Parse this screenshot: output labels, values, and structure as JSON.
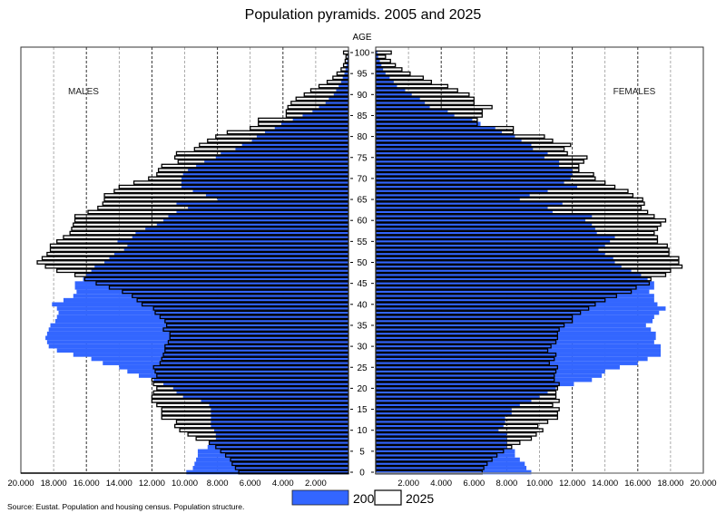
{
  "chart_data": {
    "type": "bar",
    "title": "Population pyramids. 2005 and 2025",
    "yaxis_label": "AGE",
    "left_label": "MALES",
    "right_label": "FEMALES",
    "source": "Source: Eustat. Population and housing census. Population structure.",
    "orientation": "horizontal-pyramid",
    "xlim": [
      0,
      20000
    ],
    "x_tick_values": [
      2000,
      4000,
      6000,
      8000,
      10000,
      12000,
      14000,
      16000,
      18000,
      20000
    ],
    "x_tick_labels": [
      "2.000",
      "4.000",
      "6.000",
      "8.000",
      "10.000",
      "12.000",
      "14.000",
      "16.000",
      "18.000",
      "20.000"
    ],
    "age_ticks": [
      0,
      5,
      10,
      15,
      20,
      25,
      30,
      35,
      40,
      45,
      50,
      55,
      60,
      65,
      70,
      75,
      80,
      85,
      90,
      95,
      100
    ],
    "age_range": [
      0,
      100
    ],
    "grid": "vertical dashed",
    "legend": {
      "placement": "bottom",
      "entries": [
        {
          "label": "2005",
          "color": "#3366ff"
        },
        {
          "label": "2025",
          "color": "#ffffff",
          "outline": "#000000"
        }
      ]
    },
    "units": "persons (thousands separator '.')",
    "series": [
      {
        "name": "2005",
        "sex": "males",
        "color": "#3366ff",
        "values": [
          9900,
          9500,
          9400,
          9300,
          9200,
          9200,
          8600,
          8500,
          8100,
          8100,
          8200,
          8400,
          8400,
          8400,
          8400,
          8400,
          8500,
          9000,
          10100,
          10500,
          10700,
          11300,
          11900,
          12800,
          13500,
          14000,
          15000,
          15700,
          16800,
          17800,
          18300,
          18400,
          18500,
          18400,
          18300,
          18200,
          17900,
          17800,
          17700,
          17800,
          18100,
          17400,
          16800,
          16600,
          16700,
          16700,
          16200,
          16000,
          15700,
          15500,
          14900,
          14600,
          14300,
          13700,
          13500,
          14100,
          13200,
          13000,
          12400,
          11700,
          11300,
          11000,
          10500,
          9800,
          10500,
          8000,
          8700,
          9500,
          10200,
          10200,
          10200,
          10100,
          9800,
          9300,
          8800,
          8100,
          7800,
          6900,
          6500,
          5900,
          5600,
          5100,
          4500,
          4100,
          3400,
          2800,
          2200,
          1800,
          1400,
          1200,
          900,
          750,
          600,
          450,
          350,
          250,
          180,
          120,
          80,
          50,
          30
        ]
      },
      {
        "name": "2025",
        "sex": "males",
        "color": "#ffffff",
        "values": [
          6700,
          6900,
          7100,
          7200,
          7500,
          7800,
          8100,
          8500,
          9300,
          9800,
          10300,
          10600,
          10500,
          11400,
          11400,
          11400,
          11700,
          12000,
          12000,
          11900,
          11700,
          11900,
          12000,
          11700,
          11800,
          11900,
          11500,
          11400,
          11300,
          11200,
          11200,
          11000,
          10900,
          10900,
          11300,
          11100,
          11200,
          11500,
          11800,
          11900,
          12600,
          12900,
          13200,
          13800,
          14600,
          15400,
          16100,
          16700,
          17800,
          18500,
          19000,
          18700,
          18400,
          18200,
          18200,
          17800,
          17400,
          17000,
          16900,
          16800,
          16700,
          16700,
          15900,
          15300,
          15000,
          14900,
          14900,
          14300,
          14000,
          13100,
          12200,
          11700,
          11600,
          11400,
          10400,
          10600,
          10500,
          9400,
          9100,
          8600,
          8100,
          7400,
          6000,
          5500,
          5500,
          3800,
          3800,
          3700,
          3500,
          3200,
          2700,
          2300,
          1800,
          1300,
          950,
          700,
          450,
          300,
          200,
          150,
          300
        ]
      },
      {
        "name": "2005",
        "sex": "females",
        "color": "#3366ff",
        "values": [
          9500,
          9200,
          9100,
          8800,
          8500,
          8500,
          8000,
          8000,
          8000,
          8000,
          7500,
          7800,
          7900,
          7900,
          8300,
          8300,
          8800,
          9500,
          10000,
          10500,
          11000,
          12100,
          13200,
          13800,
          14000,
          14900,
          16000,
          16600,
          17400,
          17400,
          17400,
          17000,
          17100,
          17100,
          16800,
          16500,
          16900,
          17000,
          17300,
          17700,
          17200,
          17000,
          17000,
          16700,
          17000,
          17000,
          16600,
          16200,
          15600,
          15000,
          14600,
          14500,
          14000,
          13600,
          14000,
          14300,
          14600,
          13500,
          13400,
          13200,
          12800,
          13200,
          10800,
          10500,
          11400,
          8800,
          9400,
          10500,
          12300,
          11500,
          11900,
          12000,
          12000,
          11200,
          11200,
          10300,
          10500,
          9600,
          9500,
          8900,
          8500,
          7700,
          7300,
          6400,
          5900,
          4800,
          4400,
          3300,
          3000,
          2700,
          2200,
          1800,
          1300,
          1100,
          850,
          600,
          450,
          350,
          250,
          150,
          100
        ]
      },
      {
        "name": "2025",
        "sex": "females",
        "color": "#ffffff",
        "values": [
          6500,
          6600,
          6800,
          7100,
          7400,
          7800,
          8300,
          8800,
          9500,
          9800,
          10200,
          9900,
          10500,
          11100,
          11100,
          11200,
          10800,
          11200,
          11000,
          11000,
          11100,
          11200,
          10900,
          10900,
          11000,
          11100,
          10600,
          10900,
          11000,
          10500,
          10700,
          11000,
          11100,
          11100,
          11200,
          11500,
          12000,
          12000,
          12500,
          13000,
          13400,
          14000,
          14700,
          15600,
          15900,
          16700,
          16800,
          17700,
          18000,
          18700,
          18500,
          18500,
          17900,
          17900,
          17800,
          17200,
          17200,
          17000,
          17200,
          17400,
          17700,
          17000,
          16600,
          16200,
          16400,
          16300,
          15700,
          15400,
          14600,
          14000,
          13400,
          13300,
          12400,
          12400,
          12700,
          12900,
          11700,
          11500,
          11900,
          10800,
          10300,
          8400,
          8400,
          6200,
          6200,
          6500,
          6500,
          7100,
          6000,
          6000,
          5700,
          5000,
          4400,
          3400,
          2900,
          2100,
          1600,
          1200,
          900,
          600,
          950
        ]
      }
    ]
  }
}
